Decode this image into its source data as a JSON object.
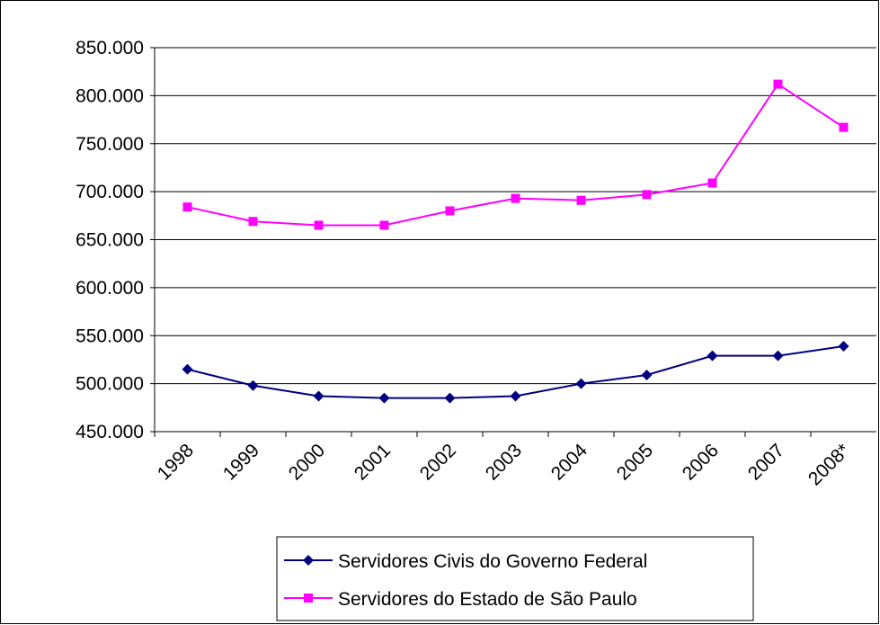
{
  "chart_data": {
    "type": "line",
    "categories": [
      "1998",
      "1999",
      "2000",
      "2001",
      "2002",
      "2003",
      "2004",
      "2005",
      "2006",
      "2007",
      "2008*"
    ],
    "series": [
      {
        "name": "Servidores Civis do Governo Federal",
        "color": "#000080",
        "marker": "diamond",
        "values": [
          515000,
          498000,
          487000,
          485000,
          485000,
          487000,
          500000,
          509000,
          529000,
          529000,
          539000
        ]
      },
      {
        "name": "Servidores do Estado de São Paulo",
        "color": "#ff00ff",
        "marker": "square",
        "values": [
          684000,
          669000,
          665000,
          665000,
          680000,
          693000,
          691000,
          697000,
          709000,
          812000,
          767000
        ]
      }
    ],
    "ylim": [
      450000,
      850000
    ],
    "yticks": [
      {
        "value": 450000,
        "label": "450.000"
      },
      {
        "value": 500000,
        "label": "500.000"
      },
      {
        "value": 550000,
        "label": "550.000"
      },
      {
        "value": 600000,
        "label": "600.000"
      },
      {
        "value": 650000,
        "label": "650.000"
      },
      {
        "value": 700000,
        "label": "700.000"
      },
      {
        "value": 750000,
        "label": "750.000"
      },
      {
        "value": 800000,
        "label": "800.000"
      },
      {
        "value": 850000,
        "label": "850.000"
      }
    ],
    "grid": true
  }
}
